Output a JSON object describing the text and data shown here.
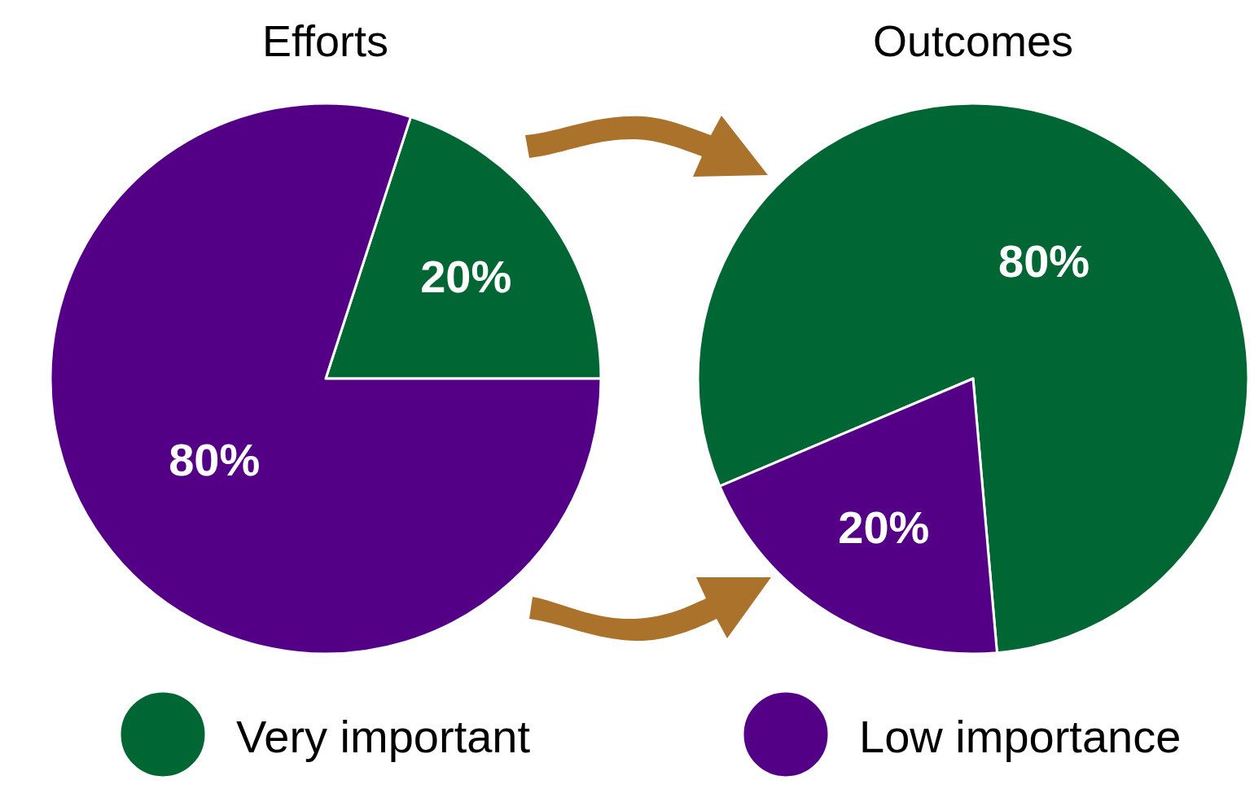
{
  "chart_data": {
    "type": "pie",
    "categories": [
      "Very important",
      "Low importance"
    ],
    "colors": [
      "#006633",
      "#530087"
    ],
    "legend": "bottom",
    "series": [
      {
        "name": "Efforts",
        "values": [
          20,
          80
        ],
        "value_labels": [
          "20%",
          "80%"
        ]
      },
      {
        "name": "Outcomes",
        "values": [
          80,
          20
        ],
        "value_labels": [
          "80%",
          "20%"
        ]
      }
    ]
  }
}
